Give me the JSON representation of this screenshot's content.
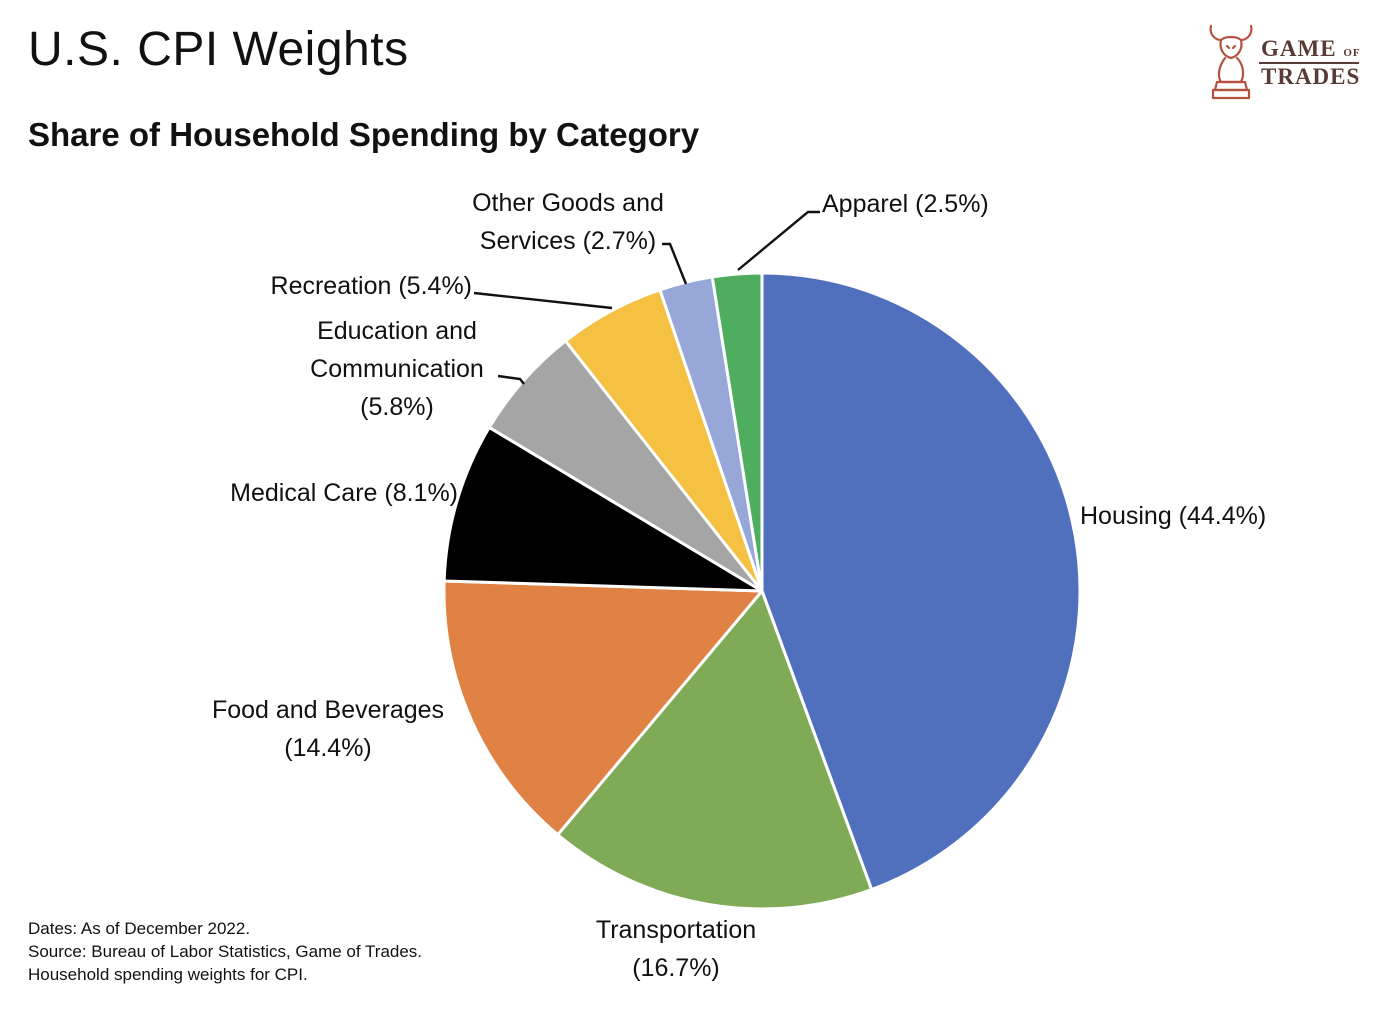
{
  "header": {
    "title": "U.S. CPI Weights",
    "subtitle": "Share of Household Spending by Category"
  },
  "logo": {
    "line1_a": "GAME",
    "line1_b": "OF",
    "line2": "TRADES",
    "icon": "bull-chess-knight-icon"
  },
  "footnotes": {
    "dates": "Dates: As of December 2022.",
    "source": "Source: Bureau of Labor Statistics, Game of Trades.",
    "note": "Household spending weights for CPI."
  },
  "chart_data": {
    "type": "pie",
    "title": "U.S. CPI Weights",
    "subtitle": "Share of Household Spending by Category",
    "start": "12 o'clock",
    "direction": "clockwise",
    "legend": "none",
    "slices": [
      {
        "label": "Housing",
        "value": 44.4,
        "display": [
          "Housing (44.4%)"
        ],
        "color": "#5070be"
      },
      {
        "label": "Transportation",
        "value": 16.7,
        "display": [
          "Transportation",
          "(16.7%)"
        ],
        "color": "#7faa56"
      },
      {
        "label": "Food and Beverages",
        "value": 14.4,
        "display": [
          "Food and Beverages",
          "(14.4%)"
        ],
        "color": "#df8244"
      },
      {
        "label": "Medical Care",
        "value": 8.1,
        "display": [
          "Medical Care (8.1%)"
        ],
        "color": "#000000"
      },
      {
        "label": "Education and Communication",
        "value": 5.8,
        "display": [
          "Education and",
          "Communication",
          "(5.8%)"
        ],
        "color": "#a5a5a5"
      },
      {
        "label": "Recreation",
        "value": 5.4,
        "display": [
          "Recreation (5.4%)"
        ],
        "color": "#f5c142"
      },
      {
        "label": "Other Goods and Services",
        "value": 2.7,
        "display": [
          "Other Goods and",
          "Services (2.7%)"
        ],
        "color": "#97a8d8"
      },
      {
        "label": "Apparel",
        "value": 2.5,
        "display": [
          "Apparel (2.5%)"
        ],
        "color": "#4ead5e"
      }
    ]
  }
}
